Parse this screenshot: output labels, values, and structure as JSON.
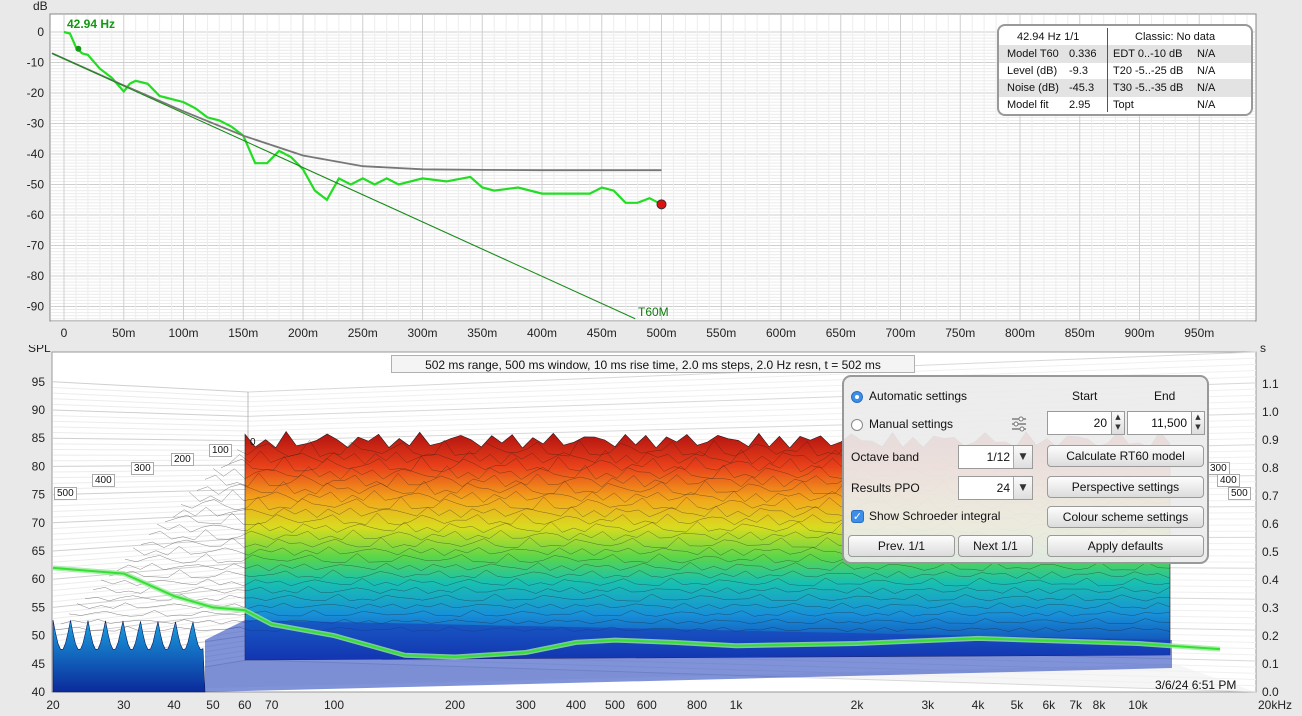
{
  "top_chart": {
    "unit_label": "dB",
    "marker_label": "42.94 Hz",
    "t60_label": "T60M",
    "y_ticks": [
      "0",
      "-10",
      "-20",
      "-30",
      "-40",
      "-50",
      "-60",
      "-70",
      "-80",
      "-90"
    ],
    "x_ticks": [
      "0",
      "50m",
      "100m",
      "150m",
      "200m",
      "250m",
      "300m",
      "350m",
      "400m",
      "450m",
      "500m",
      "550m",
      "600m",
      "650m",
      "700m",
      "750m",
      "800m",
      "850m",
      "900m",
      "950m"
    ]
  },
  "chart_data": [
    {
      "type": "line",
      "title": "",
      "xlabel": "",
      "ylabel": "dB",
      "xlim": [
        -0.01,
        1.0
      ],
      "ylim": [
        -95,
        2
      ],
      "x_unit": "s",
      "series": [
        {
          "color": "#22dd22",
          "x": [
            0,
            0.005,
            0.01,
            0.015,
            0.02,
            0.03,
            0.04,
            0.05,
            0.055,
            0.06,
            0.07,
            0.08,
            0.09,
            0.1,
            0.11,
            0.12,
            0.13,
            0.14,
            0.15,
            0.16,
            0.17,
            0.18,
            0.19,
            0.2,
            0.21,
            0.22,
            0.23,
            0.24,
            0.25,
            0.26,
            0.27,
            0.28,
            0.3,
            0.32,
            0.34,
            0.35,
            0.36,
            0.38,
            0.4,
            0.42,
            0.44,
            0.45,
            0.46,
            0.47,
            0.48,
            0.49,
            0.5
          ],
          "values": [
            0,
            -0.5,
            -5,
            -7,
            -7.5,
            -12,
            -15,
            -19.5,
            -17,
            -16,
            -17,
            -21,
            -22,
            -23,
            -25,
            -28,
            -29,
            -31,
            -34,
            -43,
            -43,
            -39,
            -41,
            -45,
            -52,
            -55,
            -48,
            -50,
            -48,
            -50,
            -48,
            -50,
            -48,
            -49,
            -47.5,
            -51,
            -52,
            -51,
            -53,
            -53,
            -53,
            -51,
            -52,
            -56,
            -56,
            -54.5,
            -56.5
          ]
        },
        {
          "color": "#777777",
          "x": [
            -0.01,
            0.05,
            0.1,
            0.15,
            0.2,
            0.25,
            0.3,
            0.35,
            0.4,
            0.45,
            0.5
          ],
          "values": [
            -7,
            -17.5,
            -26,
            -34,
            -40.5,
            -44,
            -45,
            -45.2,
            -45.3,
            -45.3,
            -45.3
          ]
        },
        {
          "name": "T60M",
          "color": "#1a8a1a",
          "x": [
            -0.01,
            0.478
          ],
          "values": [
            -7,
            -94
          ]
        }
      ]
    },
    {
      "type": "area",
      "title": "",
      "xlabel": "",
      "ylabel": "SPL",
      "x_scale": "log",
      "xlim": [
        20,
        20000
      ],
      "ylim": [
        40,
        97
      ],
      "y2label": "s",
      "y2lim": [
        0.0,
        1.1
      ],
      "series": [
        {
          "name": "Schroeder integral",
          "color": "#33e033",
          "x": [
            20,
            30,
            40,
            50,
            60,
            70,
            100,
            150,
            200,
            300,
            400,
            500,
            700,
            1000,
            2000,
            4000,
            10000,
            16000
          ],
          "values": [
            62,
            61,
            57,
            55,
            54.5,
            52,
            50,
            46.5,
            46.2,
            47,
            48.8,
            49.2,
            48.8,
            48.2,
            48.6,
            49.5,
            48.6,
            47.6
          ]
        }
      ]
    }
  ],
  "info_box": {
    "header_left": "42.94 Hz 1/1",
    "header_right": "Classic: No data",
    "rows": [
      {
        "k1": "Model T60",
        "v1": "0.336",
        "k2": "EDT  0..-10 dB",
        "v2": "N/A"
      },
      {
        "k1": "Level (dB)",
        "v1": "-9.3",
        "k2": "T20 -5..-25 dB",
        "v2": "N/A"
      },
      {
        "k1": "Noise (dB)",
        "v1": "-45.3",
        "k2": "T30 -5..-35 dB",
        "v2": "N/A"
      },
      {
        "k1": "Model fit",
        "v1": "2.95",
        "k2": "Topt",
        "v2": "N/A"
      }
    ]
  },
  "waterfall": {
    "caption": "502 ms range, 500 ms window, 10 ms rise time, 2.0 ms steps,  2.0 Hz resn, t = 502 ms",
    "y_label": "SPL",
    "y2_label": "s",
    "y_ticks": [
      "95",
      "90",
      "85",
      "80",
      "75",
      "70",
      "65",
      "60",
      "55",
      "50",
      "45",
      "40"
    ],
    "y2_ticks": [
      "1.1",
      "1.0",
      "0.9",
      "0.8",
      "0.7",
      "0.6",
      "0.5",
      "0.4",
      "0.3",
      "0.2",
      "0.1",
      "0.0"
    ],
    "x_ticks": [
      "20",
      "30",
      "40",
      "50",
      "60",
      "70",
      "100",
      "200",
      "300",
      "400",
      "500",
      "600",
      "800",
      "1k",
      "2k",
      "3k",
      "4k",
      "5k",
      "6k",
      "7k",
      "8k",
      "10k",
      "20kHz"
    ],
    "depth_left": [
      "0",
      "100",
      "200",
      "300",
      "400",
      "500"
    ],
    "depth_right": [
      "300",
      "400",
      "500"
    ],
    "timestamp": "3/6/24 6:51 PM"
  },
  "controls": {
    "automatic_label": "Automatic settings",
    "manual_label": "Manual settings",
    "start_label": "Start",
    "end_label": "End",
    "start_value": "20",
    "end_value": "11,500",
    "octave_label": "Octave band",
    "octave_value": "1/12",
    "ppo_label": "Results PPO",
    "ppo_value": "24",
    "schroeder_label": "Show Schroeder integral",
    "calc_button": "Calculate RT60 model",
    "perspective_button": "Perspective settings",
    "colour_button": "Colour scheme settings",
    "prev_button": "Prev. 1/1",
    "next_button": "Next 1/1",
    "defaults_button": "Apply defaults"
  }
}
